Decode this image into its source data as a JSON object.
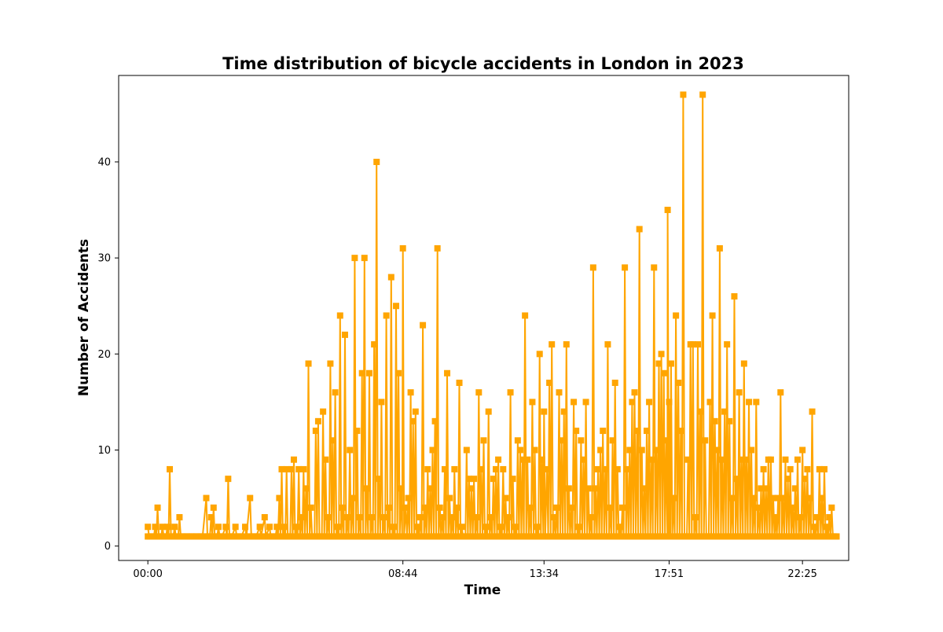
{
  "chart_data": {
    "type": "line",
    "title": "Time distribution of bicycle accidents in London in 2023",
    "xlabel": "Time",
    "ylabel": "Number of Accidents",
    "x_tick_labels": [
      "00:00",
      "08:44",
      "13:34",
      "17:51",
      "22:25"
    ],
    "y_ticks": [
      0,
      10,
      20,
      30,
      40
    ],
    "xlim_minutes": [
      -60,
      1440
    ],
    "ylim": [
      -1.5,
      49
    ],
    "grid": false,
    "legend": "none",
    "series": [
      {
        "color": "#FFA500",
        "marker": "square",
        "points": [
          [
            "00:00",
            2
          ],
          [
            "00:10",
            1
          ],
          [
            "00:15",
            2
          ],
          [
            "00:20",
            4
          ],
          [
            "00:25",
            1
          ],
          [
            "00:30",
            2
          ],
          [
            "00:35",
            1
          ],
          [
            "00:40",
            2
          ],
          [
            "00:45",
            8
          ],
          [
            "00:50",
            1
          ],
          [
            "00:55",
            2
          ],
          [
            "01:00",
            1
          ],
          [
            "01:05",
            3
          ],
          [
            "01:10",
            1
          ],
          [
            "01:20",
            1
          ],
          [
            "01:30",
            1
          ],
          [
            "01:40",
            1
          ],
          [
            "01:50",
            1
          ],
          [
            "02:00",
            5
          ],
          [
            "02:05",
            1
          ],
          [
            "02:10",
            3
          ],
          [
            "02:15",
            4
          ],
          [
            "02:20",
            1
          ],
          [
            "02:25",
            2
          ],
          [
            "02:30",
            1
          ],
          [
            "02:40",
            2
          ],
          [
            "02:45",
            7
          ],
          [
            "02:50",
            1
          ],
          [
            "03:00",
            2
          ],
          [
            "03:10",
            1
          ],
          [
            "03:20",
            2
          ],
          [
            "03:30",
            5
          ],
          [
            "03:40",
            1
          ],
          [
            "03:50",
            2
          ],
          [
            "04:00",
            3
          ],
          [
            "04:10",
            2
          ],
          [
            "04:20",
            1
          ],
          [
            "04:25",
            2
          ],
          [
            "04:30",
            5
          ],
          [
            "04:35",
            8
          ],
          [
            "04:40",
            2
          ],
          [
            "04:45",
            8
          ],
          [
            "04:50",
            1
          ],
          [
            "04:55",
            8
          ],
          [
            "05:00",
            9
          ],
          [
            "05:05",
            2
          ],
          [
            "05:10",
            8
          ],
          [
            "05:15",
            3
          ],
          [
            "05:20",
            8
          ],
          [
            "05:25",
            6
          ],
          [
            "05:30",
            19
          ],
          [
            "05:35",
            4
          ],
          [
            "05:40",
            1
          ],
          [
            "05:45",
            12
          ],
          [
            "05:50",
            13
          ],
          [
            "05:55",
            1
          ],
          [
            "06:00",
            14
          ],
          [
            "06:05",
            9
          ],
          [
            "06:10",
            3
          ],
          [
            "06:15",
            19
          ],
          [
            "06:20",
            11
          ],
          [
            "06:25",
            16
          ],
          [
            "06:30",
            2
          ],
          [
            "06:35",
            24
          ],
          [
            "06:40",
            4
          ],
          [
            "06:45",
            22
          ],
          [
            "06:50",
            3
          ],
          [
            "06:55",
            10
          ],
          [
            "07:00",
            5
          ],
          [
            "07:05",
            30
          ],
          [
            "07:10",
            12
          ],
          [
            "07:15",
            3
          ],
          [
            "07:20",
            18
          ],
          [
            "07:25",
            30
          ],
          [
            "07:30",
            6
          ],
          [
            "07:35",
            18
          ],
          [
            "07:40",
            3
          ],
          [
            "07:45",
            21
          ],
          [
            "07:50",
            40
          ],
          [
            "07:55",
            7
          ],
          [
            "08:00",
            15
          ],
          [
            "08:05",
            3
          ],
          [
            "08:10",
            24
          ],
          [
            "08:15",
            4
          ],
          [
            "08:20",
            28
          ],
          [
            "08:25",
            2
          ],
          [
            "08:30",
            25
          ],
          [
            "08:35",
            18
          ],
          [
            "08:40",
            6
          ],
          [
            "08:44",
            31
          ],
          [
            "08:50",
            4
          ],
          [
            "08:55",
            5
          ],
          [
            "09:00",
            16
          ],
          [
            "09:05",
            13
          ],
          [
            "09:10",
            14
          ],
          [
            "09:15",
            2
          ],
          [
            "09:20",
            3
          ],
          [
            "09:25",
            23
          ],
          [
            "09:30",
            4
          ],
          [
            "09:35",
            8
          ],
          [
            "09:40",
            6
          ],
          [
            "09:45",
            10
          ],
          [
            "09:50",
            13
          ],
          [
            "09:55",
            31
          ],
          [
            "10:00",
            4
          ],
          [
            "10:05",
            3
          ],
          [
            "10:10",
            8
          ],
          [
            "10:15",
            18
          ],
          [
            "10:20",
            5
          ],
          [
            "10:25",
            3
          ],
          [
            "10:30",
            8
          ],
          [
            "10:35",
            4
          ],
          [
            "10:40",
            17
          ],
          [
            "10:45",
            2
          ],
          [
            "10:50",
            1
          ],
          [
            "10:55",
            10
          ],
          [
            "11:00",
            7
          ],
          [
            "11:05",
            6
          ],
          [
            "11:10",
            7
          ],
          [
            "11:15",
            3
          ],
          [
            "11:20",
            16
          ],
          [
            "11:25",
            8
          ],
          [
            "11:30",
            11
          ],
          [
            "11:35",
            2
          ],
          [
            "11:40",
            14
          ],
          [
            "11:45",
            3
          ],
          [
            "11:50",
            7
          ],
          [
            "11:55",
            8
          ],
          [
            "12:00",
            9
          ],
          [
            "12:05",
            2
          ],
          [
            "12:10",
            8
          ],
          [
            "12:15",
            5
          ],
          [
            "12:20",
            3
          ],
          [
            "12:25",
            16
          ],
          [
            "12:30",
            7
          ],
          [
            "12:35",
            2
          ],
          [
            "12:40",
            11
          ],
          [
            "12:45",
            10
          ],
          [
            "12:50",
            9
          ],
          [
            "12:55",
            24
          ],
          [
            "13:00",
            9
          ],
          [
            "13:05",
            4
          ],
          [
            "13:10",
            15
          ],
          [
            "13:15",
            10
          ],
          [
            "13:20",
            2
          ],
          [
            "13:25",
            20
          ],
          [
            "13:30",
            9
          ],
          [
            "13:34",
            14
          ],
          [
            "13:40",
            8
          ],
          [
            "13:45",
            17
          ],
          [
            "13:50",
            21
          ],
          [
            "13:55",
            3
          ],
          [
            "14:00",
            4
          ],
          [
            "14:05",
            16
          ],
          [
            "14:10",
            11
          ],
          [
            "14:15",
            14
          ],
          [
            "14:20",
            21
          ],
          [
            "14:25",
            6
          ],
          [
            "14:30",
            4
          ],
          [
            "14:35",
            15
          ],
          [
            "14:40",
            12
          ],
          [
            "14:45",
            2
          ],
          [
            "14:50",
            11
          ],
          [
            "14:55",
            9
          ],
          [
            "15:00",
            15
          ],
          [
            "15:05",
            6
          ],
          [
            "15:10",
            3
          ],
          [
            "15:15",
            29
          ],
          [
            "15:20",
            6
          ],
          [
            "15:25",
            8
          ],
          [
            "15:30",
            10
          ],
          [
            "15:35",
            12
          ],
          [
            "15:40",
            8
          ],
          [
            "15:45",
            21
          ],
          [
            "15:50",
            4
          ],
          [
            "15:55",
            11
          ],
          [
            "16:00",
            17
          ],
          [
            "16:05",
            8
          ],
          [
            "16:10",
            2
          ],
          [
            "16:15",
            4
          ],
          [
            "16:20",
            29
          ],
          [
            "16:25",
            8
          ],
          [
            "16:30",
            10
          ],
          [
            "16:35",
            15
          ],
          [
            "16:40",
            16
          ],
          [
            "16:45",
            12
          ],
          [
            "16:50",
            33
          ],
          [
            "16:55",
            10
          ],
          [
            "17:00",
            6
          ],
          [
            "17:05",
            12
          ],
          [
            "17:10",
            15
          ],
          [
            "17:15",
            9
          ],
          [
            "17:20",
            29
          ],
          [
            "17:25",
            10
          ],
          [
            "17:30",
            19
          ],
          [
            "17:35",
            20
          ],
          [
            "17:40",
            18
          ],
          [
            "17:45",
            11
          ],
          [
            "17:48",
            35
          ],
          [
            "17:51",
            15
          ],
          [
            "17:55",
            19
          ],
          [
            "18:00",
            5
          ],
          [
            "18:05",
            24
          ],
          [
            "18:10",
            17
          ],
          [
            "18:15",
            12
          ],
          [
            "18:20",
            47
          ],
          [
            "18:25",
            1
          ],
          [
            "18:30",
            9
          ],
          [
            "18:35",
            21
          ],
          [
            "18:40",
            21
          ],
          [
            "18:45",
            3
          ],
          [
            "18:50",
            21
          ],
          [
            "18:55",
            14
          ],
          [
            "19:00",
            47
          ],
          [
            "19:05",
            11
          ],
          [
            "19:10",
            1
          ],
          [
            "19:15",
            15
          ],
          [
            "19:20",
            24
          ],
          [
            "19:25",
            13
          ],
          [
            "19:30",
            10
          ],
          [
            "19:35",
            31
          ],
          [
            "19:40",
            9
          ],
          [
            "19:45",
            14
          ],
          [
            "19:50",
            21
          ],
          [
            "19:55",
            13
          ],
          [
            "20:00",
            5
          ],
          [
            "20:05",
            26
          ],
          [
            "20:10",
            7
          ],
          [
            "20:15",
            16
          ],
          [
            "20:20",
            9
          ],
          [
            "20:25",
            19
          ],
          [
            "20:30",
            9
          ],
          [
            "20:35",
            15
          ],
          [
            "20:40",
            10
          ],
          [
            "20:45",
            5
          ],
          [
            "20:50",
            15
          ],
          [
            "20:55",
            4
          ],
          [
            "21:00",
            6
          ],
          [
            "21:05",
            8
          ],
          [
            "21:10",
            6
          ],
          [
            "21:15",
            9
          ],
          [
            "21:20",
            9
          ],
          [
            "21:25",
            5
          ],
          [
            "21:30",
            3
          ],
          [
            "21:35",
            5
          ],
          [
            "21:40",
            16
          ],
          [
            "21:45",
            5
          ],
          [
            "21:50",
            9
          ],
          [
            "21:55",
            7
          ],
          [
            "22:00",
            8
          ],
          [
            "22:05",
            4
          ],
          [
            "22:10",
            6
          ],
          [
            "22:15",
            9
          ],
          [
            "22:20",
            3
          ],
          [
            "22:25",
            10
          ],
          [
            "22:30",
            7
          ],
          [
            "22:35",
            8
          ],
          [
            "22:40",
            5
          ],
          [
            "22:45",
            14
          ],
          [
            "22:50",
            2
          ],
          [
            "22:55",
            3
          ],
          [
            "23:00",
            8
          ],
          [
            "23:05",
            5
          ],
          [
            "23:10",
            8
          ],
          [
            "23:15",
            2
          ],
          [
            "23:20",
            3
          ],
          [
            "23:25",
            4
          ],
          [
            "23:30",
            1
          ],
          [
            "23:35",
            1
          ]
        ]
      }
    ]
  }
}
